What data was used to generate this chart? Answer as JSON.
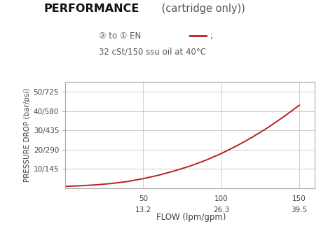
{
  "title_bold": "PERFORMANCE",
  "title_normal": " (cartridge only))",
  "legend_circle2": "②",
  "legend_circle1": "①",
  "legend_line2": "32 cSt/150 ssu oil at 40°C",
  "xlabel": "FLOW (lpm/gpm)",
  "ylabel": "PRESSURE DROP (bar/psi)",
  "x_ticks": [
    50,
    100,
    150
  ],
  "x_tick_labels_top": [
    "50",
    "100",
    "150"
  ],
  "x_tick_labels_bot": [
    "13.2",
    "26.3",
    "39.5"
  ],
  "y_ticks": [
    10,
    20,
    30,
    40,
    50
  ],
  "y_tick_labels": [
    "10/145",
    "20/290",
    "30/435",
    "40/580",
    "50/725"
  ],
  "xlim": [
    0,
    160
  ],
  "ylim": [
    0,
    55
  ],
  "curve_color": "#b22222",
  "grid_color": "#cccccc",
  "bg_color": "#ffffff",
  "curve_x": [
    0,
    10,
    20,
    30,
    40,
    50,
    60,
    70,
    80,
    90,
    100,
    110,
    120,
    130,
    140,
    150
  ],
  "curve_y": [
    1.0,
    1.3,
    1.8,
    2.5,
    3.5,
    5.0,
    6.8,
    9.0,
    11.5,
    14.5,
    18.0,
    22.0,
    26.5,
    31.5,
    37.0,
    43.0
  ]
}
